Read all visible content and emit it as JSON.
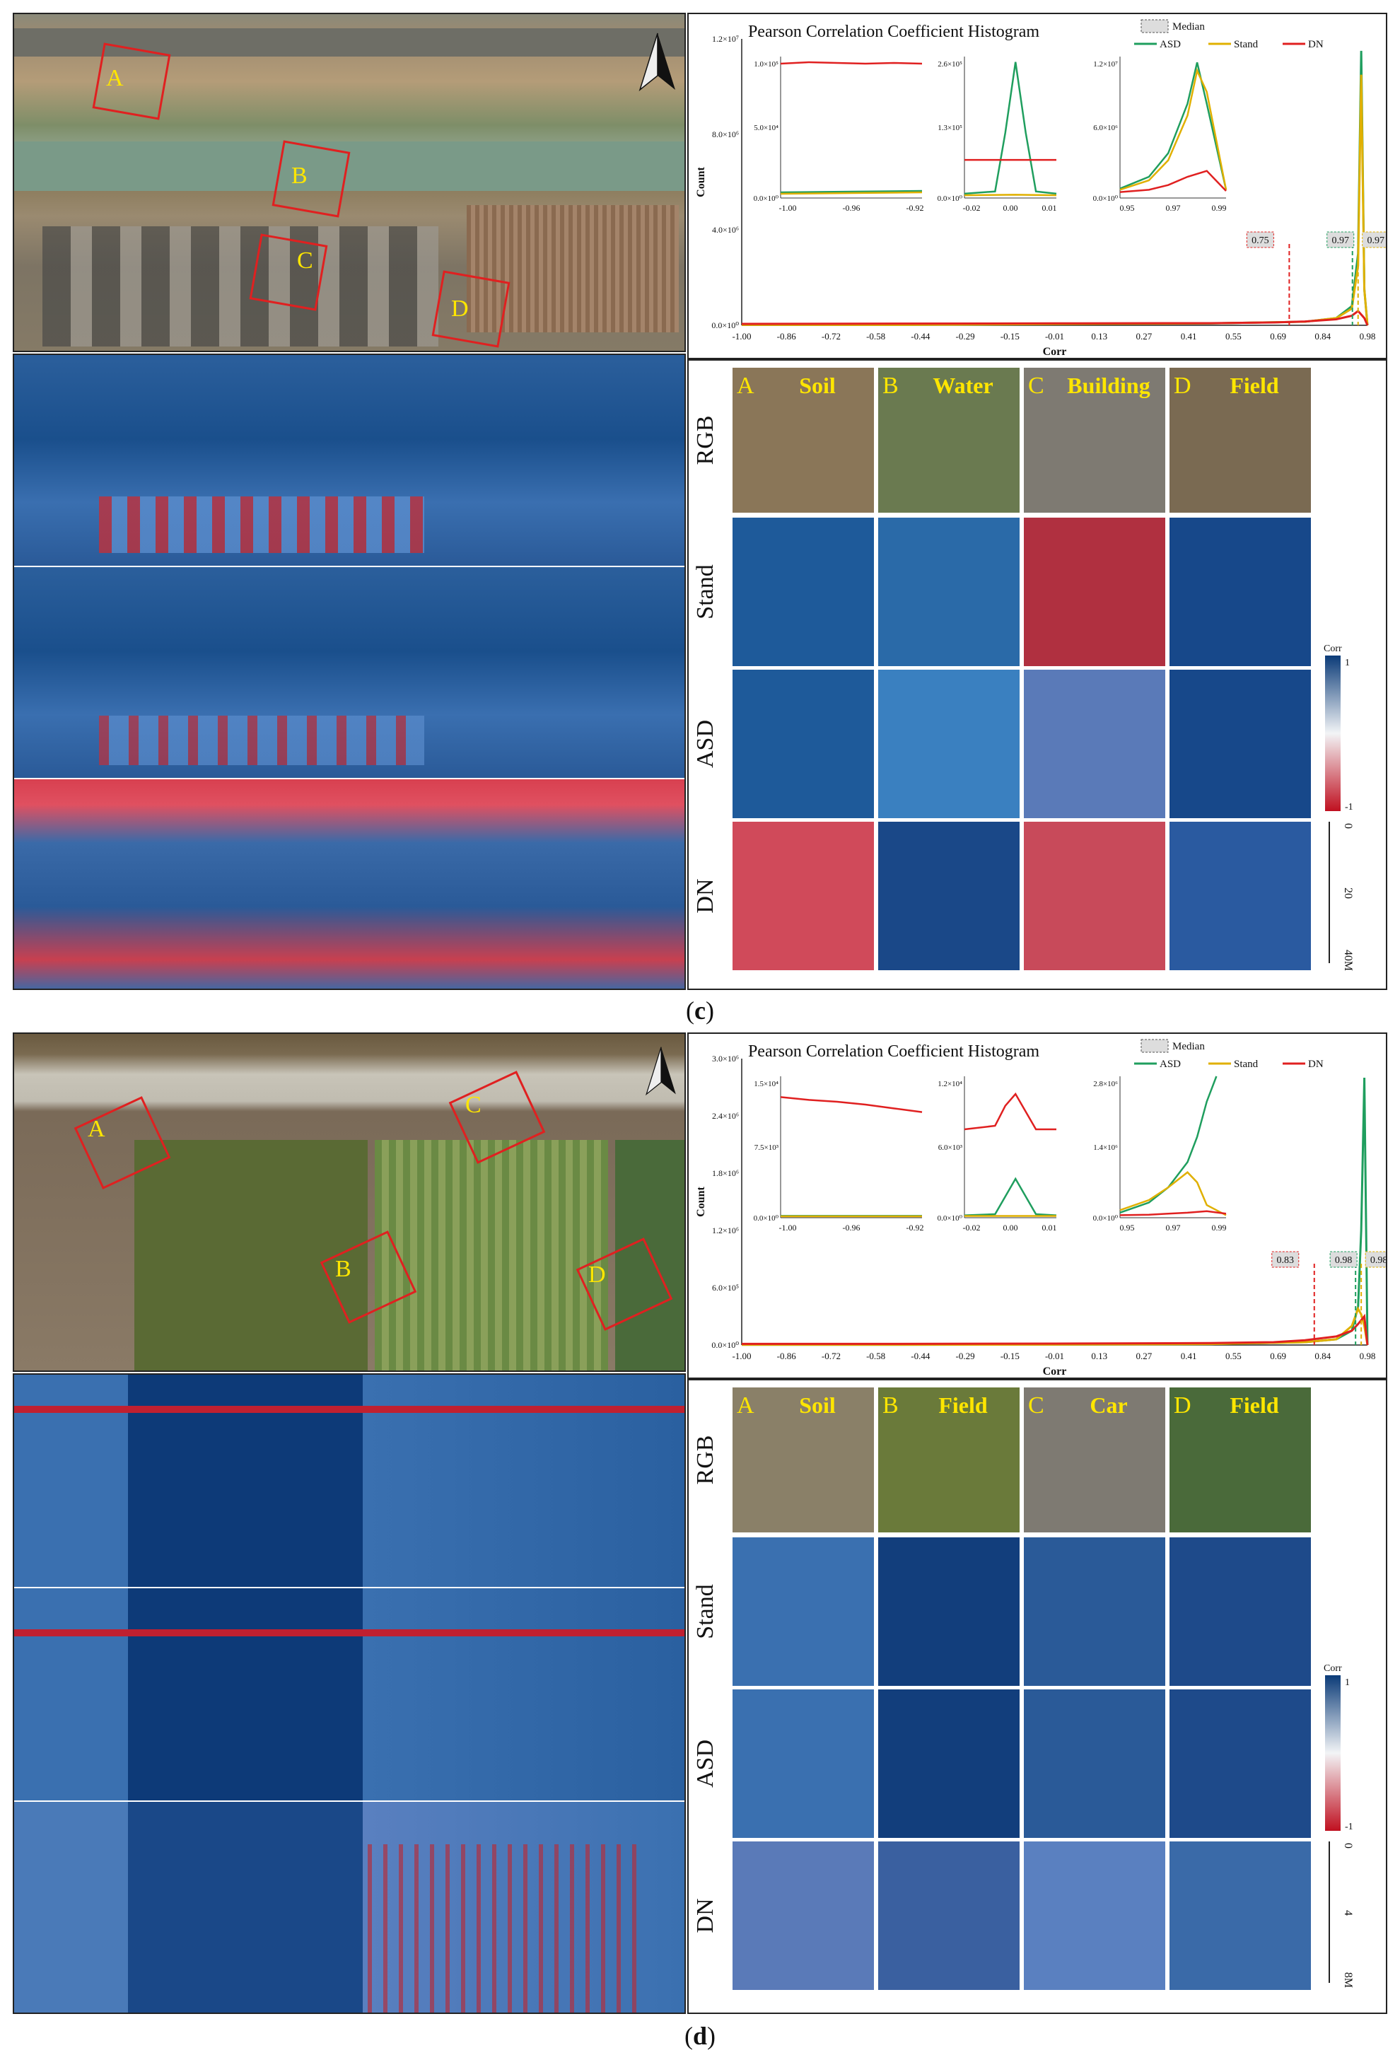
{
  "panels": [
    {
      "caption_letter": "c",
      "map_labels": [
        "A",
        "B",
        "C",
        "D"
      ],
      "chart_data": {
        "type": "line",
        "title": "Pearson Correlation Coefficient Histogram",
        "xlabel": "Corr",
        "ylabel": "Count",
        "x_ticks": [
          "-1.00",
          "-0.86",
          "-0.72",
          "-0.58",
          "-0.44",
          "-0.29",
          "-0.15",
          "-0.01",
          "0.13",
          "0.27",
          "0.41",
          "0.55",
          "0.69",
          "0.84",
          "0.98"
        ],
        "y_ticks": [
          "0.0×10⁰",
          "4.0×10⁶",
          "8.0×10⁶",
          "1.2×10⁷"
        ],
        "ylim": [
          0,
          12000000
        ],
        "xlim": [
          -1.0,
          1.0
        ],
        "legend": {
          "median_label": "Median",
          "series": [
            "ASD",
            "Stand",
            "DN"
          ]
        },
        "series": [
          {
            "name": "ASD",
            "color": "#1f9e5e",
            "x": [
              -1.0,
              -0.5,
              0.0,
              0.5,
              0.8,
              0.9,
              0.95,
              0.97,
              0.98,
              0.99,
              1.0
            ],
            "y": [
              20000,
              20000,
              60000,
              80000,
              150000,
              300000,
              800000,
              3000000,
              11500000,
              1500000,
              0
            ]
          },
          {
            "name": "Stand",
            "color": "#e0b000",
            "x": [
              -1.0,
              -0.5,
              0.0,
              0.5,
              0.8,
              0.9,
              0.95,
              0.97,
              0.98,
              0.99,
              1.0
            ],
            "y": [
              20000,
              20000,
              50000,
              80000,
              150000,
              300000,
              700000,
              2500000,
              10500000,
              1500000,
              0
            ]
          },
          {
            "name": "DN",
            "color": "#e02020",
            "x": [
              -1.0,
              -0.5,
              0.0,
              0.5,
              0.7,
              0.8,
              0.9,
              0.95,
              0.97,
              0.99,
              1.0
            ],
            "y": [
              60000,
              70000,
              80000,
              90000,
              120000,
              160000,
              250000,
              400000,
              600000,
              300000,
              0
            ]
          }
        ],
        "medians": [
          {
            "label": "0.75",
            "value": 0.75,
            "color": "#e02020"
          },
          {
            "label": "0.97",
            "value": 0.97,
            "color": "#1f9e5e"
          },
          {
            "label": "0.97",
            "value": 0.97,
            "color": "#e0b000"
          }
        ],
        "insets": [
          {
            "x_ticks": [
              "-1.00",
              "-0.96",
              "-0.92"
            ],
            "y_ticks": [
              "0.0×10⁰",
              "5.0×10⁴",
              "1.0×10⁵"
            ],
            "ylim": [
              0,
              100000
            ],
            "xlim": [
              -1.0,
              -0.9
            ],
            "series": [
              {
                "name": "DN",
                "x": [
                  -1.0,
                  -0.98,
                  -0.96,
                  -0.94,
                  -0.92,
                  -0.9
                ],
                "y": [
                  95000,
                  96000,
                  95500,
                  95000,
                  95500,
                  95000
                ]
              },
              {
                "name": "ASD",
                "x": [
                  -1.0,
                  -0.95,
                  -0.9
                ],
                "y": [
                  4000,
                  4500,
                  5000
                ]
              },
              {
                "name": "Stand",
                "x": [
                  -1.0,
                  -0.95,
                  -0.9
                ],
                "y": [
                  3000,
                  3500,
                  4000
                ]
              }
            ]
          },
          {
            "x_ticks": [
              "-0.02",
              "0.00",
              "0.01"
            ],
            "y_ticks": [
              "0.0×10⁰",
              "1.3×10⁵",
              "2.6×10⁵"
            ],
            "ylim": [
              0,
              260000
            ],
            "xlim": [
              -0.025,
              0.02
            ],
            "series": [
              {
                "name": "ASD",
                "x": [
                  -0.025,
                  -0.01,
                  -0.005,
                  0.0,
                  0.005,
                  0.01,
                  0.02
                ],
                "y": [
                  8000,
                  12000,
                  120000,
                  250000,
                  120000,
                  12000,
                  8000
                ]
              },
              {
                "name": "DN",
                "x": [
                  -0.025,
                  0.02
                ],
                "y": [
                  70000,
                  70000
                ]
              },
              {
                "name": "Stand",
                "x": [
                  -0.025,
                  0.0,
                  0.02
                ],
                "y": [
                  5000,
                  6000,
                  5000
                ]
              }
            ]
          },
          {
            "x_ticks": [
              "0.95",
              "0.97",
              "0.99"
            ],
            "y_ticks": [
              "0.0×10⁰",
              "6.0×10⁶",
              "1.2×10⁷"
            ],
            "ylim": [
              0,
              12000000
            ],
            "xlim": [
              0.945,
              1.0
            ],
            "series": [
              {
                "name": "ASD",
                "x": [
                  0.945,
                  0.96,
                  0.97,
                  0.98,
                  0.985,
                  0.99,
                  1.0
                ],
                "y": [
                  800000,
                  1800000,
                  3800000,
                  8000000,
                  11500000,
                  8000000,
                  700000
                ]
              },
              {
                "name": "Stand",
                "x": [
                  0.945,
                  0.96,
                  0.97,
                  0.98,
                  0.985,
                  0.99,
                  1.0
                ],
                "y": [
                  700000,
                  1500000,
                  3200000,
                  7000000,
                  10800000,
                  9000000,
                  700000
                ]
              },
              {
                "name": "DN",
                "x": [
                  0.945,
                  0.96,
                  0.97,
                  0.98,
                  0.99,
                  1.0
                ],
                "y": [
                  500000,
                  700000,
                  1100000,
                  1800000,
                  2300000,
                  600000
                ]
              }
            ]
          }
        ]
      },
      "grid": {
        "row_labels": [
          "RGB",
          "Stand",
          "ASD",
          "DN"
        ],
        "columns": [
          {
            "letter": "A",
            "name": "Soil"
          },
          {
            "letter": "B",
            "name": "Water"
          },
          {
            "letter": "C",
            "name": "Building"
          },
          {
            "letter": "D",
            "name": "Field"
          }
        ],
        "colorbar": {
          "title": "Corr",
          "max_label": "1",
          "min_label": "-1"
        },
        "scalebar": [
          "0",
          "20",
          "40M"
        ]
      }
    },
    {
      "caption_letter": "d",
      "map_labels": [
        "A",
        "B",
        "C",
        "D"
      ],
      "chart_data": {
        "type": "line",
        "title": "Pearson Correlation Coefficient Histogram",
        "xlabel": "Corr",
        "ylabel": "Count",
        "x_ticks": [
          "-1.00",
          "-0.86",
          "-0.72",
          "-0.58",
          "-0.44",
          "-0.29",
          "-0.15",
          "-0.01",
          "0.13",
          "0.27",
          "0.41",
          "0.55",
          "0.69",
          "0.84",
          "0.98"
        ],
        "y_ticks": [
          "0.0×10⁰",
          "6.0×10⁵",
          "1.2×10⁶",
          "1.8×10⁶",
          "2.4×10⁶",
          "3.0×10⁶"
        ],
        "ylim": [
          0,
          3000000
        ],
        "xlim": [
          -1.0,
          1.0
        ],
        "legend": {
          "median_label": "Median",
          "series": [
            "ASD",
            "Stand",
            "DN"
          ]
        },
        "series": [
          {
            "name": "ASD",
            "color": "#1f9e5e",
            "x": [
              -1.0,
              -0.5,
              0.0,
              0.5,
              0.8,
              0.9,
              0.95,
              0.97,
              0.98,
              0.99,
              1.0
            ],
            "y": [
              3000,
              3000,
              5000,
              10000,
              30000,
              60000,
              150000,
              400000,
              1200000,
              2800000,
              0
            ]
          },
          {
            "name": "Stand",
            "color": "#e0b000",
            "x": [
              -1.0,
              -0.5,
              0.0,
              0.5,
              0.8,
              0.9,
              0.95,
              0.97,
              0.98,
              0.99,
              1.0
            ],
            "y": [
              3000,
              3000,
              5000,
              10000,
              30000,
              60000,
              200000,
              380000,
              320000,
              200000,
              0
            ]
          },
          {
            "name": "DN",
            "color": "#e02020",
            "x": [
              -1.0,
              -0.5,
              0.0,
              0.5,
              0.7,
              0.8,
              0.9,
              0.95,
              0.97,
              0.99,
              1.0
            ],
            "y": [
              12000,
              12000,
              15000,
              20000,
              30000,
              50000,
              90000,
              150000,
              220000,
              300000,
              0
            ]
          }
        ],
        "medians": [
          {
            "label": "0.83",
            "value": 0.83,
            "color": "#e02020"
          },
          {
            "label": "0.98",
            "value": 0.98,
            "color": "#1f9e5e"
          },
          {
            "label": "0.98",
            "value": 0.98,
            "color": "#e0b000"
          }
        ],
        "insets": [
          {
            "x_ticks": [
              "-1.00",
              "-0.96",
              "-0.92"
            ],
            "y_ticks": [
              "0.0×10⁰",
              "7.5×10³",
              "1.5×10⁴"
            ],
            "ylim": [
              0,
              15000
            ],
            "xlim": [
              -1.0,
              -0.9
            ],
            "series": [
              {
                "name": "DN",
                "x": [
                  -1.0,
                  -0.98,
                  -0.96,
                  -0.94,
                  -0.92,
                  -0.9
                ],
                "y": [
                  12800,
                  12500,
                  12300,
                  12000,
                  11600,
                  11200
                ]
              },
              {
                "name": "ASD",
                "x": [
                  -1.0,
                  -0.9
                ],
                "y": [
                  200,
                  200
                ]
              },
              {
                "name": "Stand",
                "x": [
                  -1.0,
                  -0.9
                ],
                "y": [
                  150,
                  150
                ]
              }
            ]
          },
          {
            "x_ticks": [
              "-0.02",
              "0.00",
              "0.01"
            ],
            "y_ticks": [
              "0.0×10⁰",
              "6.0×10³",
              "1.2×10⁴"
            ],
            "ylim": [
              0,
              12000
            ],
            "xlim": [
              -0.025,
              0.02
            ],
            "series": [
              {
                "name": "DN",
                "x": [
                  -0.025,
                  -0.01,
                  -0.005,
                  0.0,
                  0.005,
                  0.01,
                  0.02
                ],
                "y": [
                  7500,
                  7800,
                  9500,
                  10500,
                  9000,
                  7500,
                  7500
                ]
              },
              {
                "name": "ASD",
                "x": [
                  -0.025,
                  -0.01,
                  -0.005,
                  0.0,
                  0.005,
                  0.01,
                  0.02
                ],
                "y": [
                  200,
                  300,
                  1800,
                  3300,
                  1800,
                  300,
                  200
                ]
              },
              {
                "name": "Stand",
                "x": [
                  -0.025,
                  0.02
                ],
                "y": [
                  150,
                  150
                ]
              }
            ]
          },
          {
            "x_ticks": [
              "0.95",
              "0.97",
              "0.99"
            ],
            "y_ticks": [
              "0.0×10⁰",
              "1.4×10⁶",
              "2.8×10⁶"
            ],
            "ylim": [
              0,
              2800000
            ],
            "xlim": [
              0.945,
              1.0
            ],
            "series": [
              {
                "name": "ASD",
                "x": [
                  0.945,
                  0.96,
                  0.97,
                  0.98,
                  0.985,
                  0.99,
                  0.995
                ],
                "y": [
                  100000,
                  300000,
                  600000,
                  1100000,
                  1600000,
                  2300000,
                  2800000
                ]
              },
              {
                "name": "Stand",
                "x": [
                  0.945,
                  0.96,
                  0.97,
                  0.98,
                  0.985,
                  0.99,
                  1.0
                ],
                "y": [
                  150000,
                  350000,
                  600000,
                  900000,
                  700000,
                  250000,
                  50000
                ]
              },
              {
                "name": "DN",
                "x": [
                  0.945,
                  0.96,
                  0.97,
                  0.98,
                  0.99,
                  1.0
                ],
                "y": [
                  50000,
                  60000,
                  80000,
                  100000,
                  130000,
                  80000
                ]
              }
            ]
          }
        ]
      },
      "grid": {
        "row_labels": [
          "RGB",
          "Stand",
          "ASD",
          "DN"
        ],
        "columns": [
          {
            "letter": "A",
            "name": "Soil"
          },
          {
            "letter": "B",
            "name": "Field"
          },
          {
            "letter": "C",
            "name": "Car"
          },
          {
            "letter": "D",
            "name": "Field"
          }
        ],
        "colorbar": {
          "title": "Corr",
          "max_label": "1",
          "min_label": "-1"
        },
        "scalebar": [
          "0",
          "4",
          "8M"
        ]
      }
    }
  ],
  "colors": {
    "asd": "#1f9e5e",
    "stand": "#e0b000",
    "dn": "#e02020",
    "map_red": "#e02020",
    "label_yellow": "#ffe600"
  }
}
